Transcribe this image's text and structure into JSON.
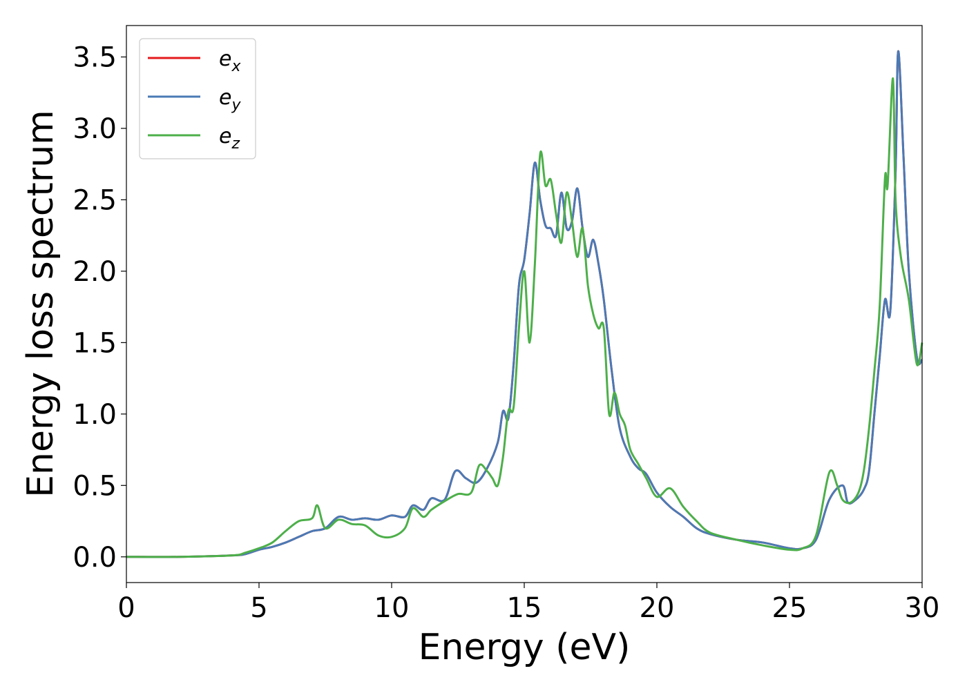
{
  "chart_data": {
    "type": "line",
    "xlabel": "Energy (eV)",
    "ylabel": "Energy loss spectrum",
    "xlim": [
      0,
      30
    ],
    "ylim": [
      -0.18,
      3.72
    ],
    "xticks": [
      0,
      5,
      10,
      15,
      20,
      25,
      30
    ],
    "xtick_labels": [
      "0",
      "5",
      "10",
      "15",
      "20",
      "25",
      "30"
    ],
    "yticks": [
      0.0,
      0.5,
      1.0,
      1.5,
      2.0,
      2.5,
      3.0,
      3.5
    ],
    "ytick_labels": [
      "0.0",
      "0.5",
      "1.0",
      "1.5",
      "2.0",
      "2.5",
      "3.0",
      "3.5"
    ],
    "grid": false,
    "legend_position": "top-left",
    "series": [
      {
        "name": "e_x",
        "legend_base": "e",
        "legend_sub": "x",
        "color": "#e41a1c",
        "x": [
          0,
          2,
          4,
          4.5,
          5,
          5.5,
          6,
          6.5,
          7,
          7.5,
          8,
          8.5,
          9,
          9.5,
          10,
          10.5,
          10.8,
          11.2,
          11.5,
          12,
          12.4,
          12.8,
          13.2,
          13.6,
          14,
          14.2,
          14.4,
          14.6,
          14.8,
          15,
          15.2,
          15.4,
          15.6,
          15.8,
          16,
          16.2,
          16.4,
          16.6,
          16.8,
          17,
          17.2,
          17.4,
          17.6,
          17.8,
          18,
          18.3,
          18.6,
          19,
          19.3,
          19.6,
          20,
          20.5,
          21,
          21.5,
          22,
          23,
          24,
          25,
          25.5,
          26,
          26.5,
          27,
          27.2,
          27.5,
          27.8,
          28,
          28.2,
          28.4,
          28.6,
          28.8,
          29,
          29.1,
          29.3,
          29.5,
          29.8,
          30
        ],
        "values": [
          0,
          0,
          0.01,
          0.02,
          0.05,
          0.07,
          0.1,
          0.14,
          0.18,
          0.2,
          0.28,
          0.26,
          0.27,
          0.26,
          0.29,
          0.28,
          0.36,
          0.33,
          0.41,
          0.4,
          0.6,
          0.55,
          0.52,
          0.62,
          0.8,
          1.02,
          0.97,
          1.35,
          1.9,
          2.08,
          2.4,
          2.76,
          2.5,
          2.32,
          2.3,
          2.25,
          2.55,
          2.3,
          2.35,
          2.58,
          2.3,
          2.1,
          2.22,
          2.05,
          1.8,
          1.3,
          0.9,
          0.7,
          0.62,
          0.58,
          0.45,
          0.35,
          0.28,
          0.2,
          0.16,
          0.12,
          0.1,
          0.06,
          0.06,
          0.12,
          0.4,
          0.5,
          0.38,
          0.4,
          0.47,
          0.6,
          1.0,
          1.4,
          1.8,
          1.72,
          2.7,
          3.54,
          2.8,
          2.0,
          1.4,
          1.38
        ]
      },
      {
        "name": "e_y",
        "legend_base": "e",
        "legend_sub": "y",
        "color": "#4a7ab5",
        "x": [
          0,
          2,
          4,
          4.5,
          5,
          5.5,
          6,
          6.5,
          7,
          7.5,
          8,
          8.5,
          9,
          9.5,
          10,
          10.5,
          10.8,
          11.2,
          11.5,
          12,
          12.4,
          12.8,
          13.2,
          13.6,
          14,
          14.2,
          14.4,
          14.6,
          14.8,
          15,
          15.2,
          15.4,
          15.6,
          15.8,
          16,
          16.2,
          16.4,
          16.6,
          16.8,
          17,
          17.2,
          17.4,
          17.6,
          17.8,
          18,
          18.3,
          18.6,
          19,
          19.3,
          19.6,
          20,
          20.5,
          21,
          21.5,
          22,
          23,
          24,
          25,
          25.5,
          26,
          26.5,
          27,
          27.2,
          27.5,
          27.8,
          28,
          28.2,
          28.4,
          28.6,
          28.8,
          29,
          29.1,
          29.3,
          29.5,
          29.8,
          30
        ],
        "values": [
          0,
          0,
          0.01,
          0.02,
          0.05,
          0.07,
          0.1,
          0.14,
          0.18,
          0.2,
          0.28,
          0.26,
          0.27,
          0.26,
          0.29,
          0.28,
          0.36,
          0.33,
          0.41,
          0.4,
          0.6,
          0.55,
          0.52,
          0.62,
          0.8,
          1.02,
          0.97,
          1.35,
          1.9,
          2.08,
          2.4,
          2.76,
          2.5,
          2.32,
          2.3,
          2.25,
          2.55,
          2.3,
          2.35,
          2.58,
          2.3,
          2.1,
          2.22,
          2.05,
          1.8,
          1.3,
          0.9,
          0.7,
          0.62,
          0.58,
          0.45,
          0.35,
          0.28,
          0.2,
          0.16,
          0.12,
          0.1,
          0.06,
          0.06,
          0.12,
          0.4,
          0.5,
          0.38,
          0.4,
          0.47,
          0.6,
          1.0,
          1.4,
          1.8,
          1.72,
          2.7,
          3.54,
          2.8,
          2.0,
          1.4,
          1.38
        ]
      },
      {
        "name": "e_z",
        "legend_base": "e",
        "legend_sub": "z",
        "color": "#4daf4a",
        "x": [
          0,
          2,
          4,
          4.5,
          5,
          5.5,
          6,
          6.5,
          7,
          7.2,
          7.5,
          8,
          8.5,
          9,
          9.5,
          10,
          10.5,
          10.8,
          11.2,
          11.5,
          12,
          12.5,
          13,
          13.3,
          13.6,
          13.8,
          14,
          14.2,
          14.4,
          14.6,
          14.8,
          15,
          15.2,
          15.4,
          15.6,
          15.8,
          16,
          16.2,
          16.4,
          16.6,
          16.8,
          17,
          17.2,
          17.4,
          17.6,
          17.8,
          18,
          18.2,
          18.4,
          18.6,
          18.8,
          19,
          19.3,
          19.6,
          20,
          20.5,
          21,
          21.5,
          22,
          23,
          24,
          25,
          25.5,
          26,
          26.5,
          26.8,
          27,
          27.3,
          27.6,
          27.8,
          28,
          28.2,
          28.4,
          28.6,
          28.7,
          28.9,
          29,
          29.2,
          29.5,
          29.8,
          30
        ],
        "values": [
          0,
          0,
          0.01,
          0.03,
          0.06,
          0.1,
          0.18,
          0.25,
          0.27,
          0.36,
          0.2,
          0.26,
          0.23,
          0.22,
          0.15,
          0.14,
          0.2,
          0.34,
          0.28,
          0.33,
          0.39,
          0.44,
          0.45,
          0.64,
          0.6,
          0.55,
          0.5,
          0.7,
          1.02,
          1.05,
          1.6,
          2.0,
          1.5,
          2.05,
          2.82,
          2.6,
          2.64,
          2.4,
          2.2,
          2.55,
          2.35,
          2.1,
          2.3,
          1.9,
          1.7,
          1.6,
          1.6,
          1.0,
          1.15,
          1.0,
          0.92,
          0.75,
          0.65,
          0.55,
          0.42,
          0.48,
          0.35,
          0.25,
          0.17,
          0.12,
          0.08,
          0.05,
          0.06,
          0.15,
          0.59,
          0.5,
          0.4,
          0.38,
          0.45,
          0.6,
          0.9,
          1.3,
          1.75,
          2.65,
          2.6,
          3.35,
          2.5,
          2.1,
          1.8,
          1.35,
          1.5
        ]
      }
    ]
  }
}
